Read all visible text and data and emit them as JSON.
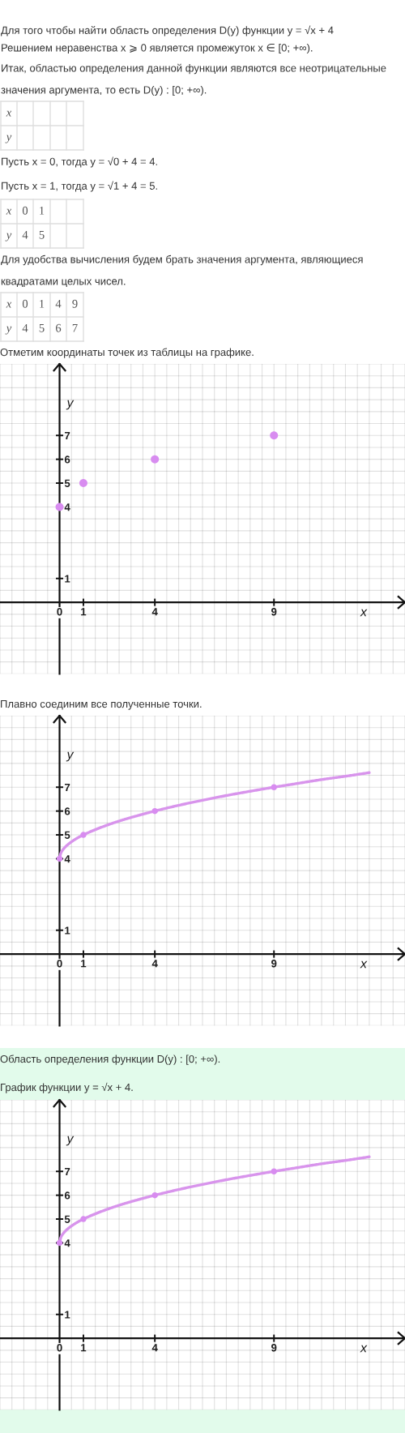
{
  "chart_data": [
    {
      "type": "scatter",
      "title": "Отметим координаты точек из таблицы на графике.",
      "annotations": [
        "Для того чтобы найти область определения D(y) функции y = √x + 4",
        "Решением неравенства x ⩾ 0 является промежуток x ∈ [0; +∞).",
        "Итак, областью определения данной функции являются все неотрицательные",
        "значения аргумента, то есть D(y) : [0; +∞).",
        "Пусть x = 0, тогда y = √0 + 4 = 4.",
        "Пусть x = 1, тогда y = √1 + 4 = 5.",
        "0",
        "1",
        "4",
        "5",
        "Для удобства вычисления будем брать значения аргумента, являющиеся",
        "квадратами целых чисел.",
        "0",
        "1",
        "4",
        "9",
        "4",
        "5",
        "6",
        "7"
      ],
      "xlabel": "x",
      "ylabel": "y",
      "x": [
        0,
        1,
        4,
        9
      ],
      "series": [
        {
          "color": "#d88cf0",
          "marker": "circle",
          "values": [
            4,
            5,
            6,
            7
          ]
        }
      ],
      "xlim": [
        -2.5,
        14.5
      ],
      "ylim": [
        -3,
        10
      ],
      "xticks": [
        {
          "value": -2.5,
          "label": null
        },
        {
          "value": -2,
          "label": null
        },
        {
          "value": -1.5,
          "label": null
        },
        {
          "value": -1,
          "label": null
        },
        {
          "value": -0.5,
          "label": null
        },
        0,
        {
          "value": 0.5,
          "label": null
        },
        1,
        {
          "value": 1.5,
          "label": null
        },
        {
          "value": 2,
          "label": null
        },
        {
          "value": 2.5,
          "label": null
        },
        {
          "value": 3,
          "label": null
        },
        {
          "value": 3.5,
          "label": null
        },
        4,
        {
          "value": 4.5,
          "label": null
        },
        {
          "value": 5,
          "label": null
        },
        {
          "value": 5.5,
          "label": null
        },
        {
          "value": 6,
          "label": null
        },
        {
          "value": 6.5,
          "label": null
        },
        {
          "value": 7,
          "label": null
        },
        {
          "value": 7.5,
          "label": null
        },
        {
          "value": 8,
          "label": null
        },
        {
          "value": 8.5,
          "label": null
        },
        9,
        {
          "value": 9.5,
          "label": null
        },
        {
          "value": 10,
          "label": null
        },
        {
          "value": 10.5,
          "label": null
        },
        {
          "value": 11,
          "label": null
        },
        {
          "value": 11.5,
          "label": null
        },
        {
          "value": 12,
          "label": null
        },
        {
          "value": 12.5,
          "label": null
        },
        {
          "value": 13,
          "label": null
        },
        {
          "value": 13.5,
          "label": null
        },
        {
          "value": 14,
          "label": null
        },
        {
          "value": 14.5,
          "label": null
        }
      ],
      "yticks": [
        {
          "value": -3,
          "label": null
        },
        {
          "value": -2.5,
          "label": null
        },
        {
          "value": -2,
          "label": null
        },
        {
          "value": -1.5,
          "label": null
        },
        {
          "value": -1,
          "label": null
        },
        {
          "value": -0.5,
          "label": null
        },
        {
          "value": 0,
          "label": null
        },
        {
          "value": 0.5,
          "label": null
        },
        1,
        {
          "value": 1.5,
          "label": null
        },
        {
          "value": 2,
          "label": null
        },
        {
          "value": 2.5,
          "label": null
        },
        {
          "value": 3,
          "label": null
        },
        {
          "value": 3.5,
          "label": null
        },
        4,
        {
          "value": 4.5,
          "label": null
        },
        5,
        {
          "value": 5.5,
          "label": null
        },
        6,
        {
          "value": 6.5,
          "label": null
        },
        7,
        {
          "value": 7.5,
          "label": null
        },
        {
          "value": 8,
          "label": null
        },
        {
          "value": 8.5,
          "label": null
        },
        {
          "value": 9,
          "label": null
        },
        {
          "value": 9.5,
          "label": null
        },
        {
          "value": 10,
          "label": null
        }
      ],
      "grid": true
    },
    {
      "type": "line",
      "title": "Плавно соединим все полученные точки.",
      "xlabel": "x",
      "ylabel": "y",
      "x": [
        0,
        1,
        4,
        9
      ],
      "series": [
        {
          "color": "#d894ec",
          "x": [
            0,
            0.05,
            0.15,
            0.3,
            0.5,
            0.75,
            1,
            1.5,
            2,
            2.5,
            3,
            4,
            5,
            6,
            7,
            8,
            9,
            10,
            11,
            12,
            13
          ],
          "values": [
            4,
            4.22,
            4.39,
            4.55,
            4.71,
            4.87,
            5,
            5.22,
            5.41,
            5.58,
            5.73,
            6,
            6.24,
            6.45,
            6.65,
            6.83,
            7,
            7.16,
            7.32,
            7.46,
            7.61
          ]
        },
        {
          "type": "scatter",
          "color": "#d88cf0",
          "marker": "circle",
          "values": [
            4,
            5,
            6,
            7
          ]
        }
      ],
      "xlim": [
        -2.5,
        14.5
      ],
      "ylim": [
        -3,
        10
      ],
      "xticks": [
        {
          "value": -2.5,
          "label": null
        },
        {
          "value": -2,
          "label": null
        },
        {
          "value": -1.5,
          "label": null
        },
        {
          "value": -1,
          "label": null
        },
        {
          "value": -0.5,
          "label": null
        },
        0,
        {
          "value": 0.5,
          "label": null
        },
        1,
        {
          "value": 1.5,
          "label": null
        },
        {
          "value": 2,
          "label": null
        },
        {
          "value": 2.5,
          "label": null
        },
        {
          "value": 3,
          "label": null
        },
        {
          "value": 3.5,
          "label": null
        },
        4,
        {
          "value": 4.5,
          "label": null
        },
        {
          "value": 5,
          "label": null
        },
        {
          "value": 5.5,
          "label": null
        },
        {
          "value": 6,
          "label": null
        },
        {
          "value": 6.5,
          "label": null
        },
        {
          "value": 7,
          "label": null
        },
        {
          "value": 7.5,
          "label": null
        },
        {
          "value": 8,
          "label": null
        },
        {
          "value": 8.5,
          "label": null
        },
        9,
        {
          "value": 9.5,
          "label": null
        },
        {
          "value": 10,
          "label": null
        },
        {
          "value": 10.5,
          "label": null
        },
        {
          "value": 11,
          "label": null
        },
        {
          "value": 11.5,
          "label": null
        },
        {
          "value": 12,
          "label": null
        },
        {
          "value": 12.5,
          "label": null
        },
        {
          "value": 13,
          "label": null
        },
        {
          "value": 13.5,
          "label": null
        },
        {
          "value": 14,
          "label": null
        },
        {
          "value": 14.5,
          "label": null
        }
      ],
      "yticks": [
        {
          "value": -3,
          "label": null
        },
        {
          "value": -2.5,
          "label": null
        },
        {
          "value": -2,
          "label": null
        },
        {
          "value": -1.5,
          "label": null
        },
        {
          "value": -1,
          "label": null
        },
        {
          "value": -0.5,
          "label": null
        },
        {
          "value": 0,
          "label": null
        },
        {
          "value": 0.5,
          "label": null
        },
        1,
        {
          "value": 1.5,
          "label": null
        },
        {
          "value": 2,
          "label": null
        },
        {
          "value": 2.5,
          "label": null
        },
        {
          "value": 3,
          "label": null
        },
        {
          "value": 3.5,
          "label": null
        },
        4,
        {
          "value": 4.5,
          "label": null
        },
        5,
        {
          "value": 5.5,
          "label": null
        },
        6,
        {
          "value": 6.5,
          "label": null
        },
        7,
        {
          "value": 7.5,
          "label": null
        },
        {
          "value": 8,
          "label": null
        },
        {
          "value": 8.5,
          "label": null
        },
        {
          "value": 9,
          "label": null
        },
        {
          "value": 9.5,
          "label": null
        },
        {
          "value": 10,
          "label": null
        }
      ],
      "grid": true
    },
    {
      "type": "line",
      "title": "Область определения функции D(y) : [0; +∞).",
      "subtitle": "График функции y = √x + 4.",
      "xlabel": "x",
      "ylabel": "y",
      "x": [
        0,
        1,
        4,
        9
      ],
      "series": [
        {
          "color": "#d894ec",
          "x": [
            0,
            0.05,
            0.15,
            0.3,
            0.5,
            0.75,
            1,
            1.5,
            2,
            2.5,
            3,
            4,
            5,
            6,
            7,
            8,
            9,
            10,
            11,
            12,
            13
          ],
          "values": [
            4,
            4.22,
            4.39,
            4.55,
            4.71,
            4.87,
            5,
            5.22,
            5.41,
            5.58,
            5.73,
            6,
            6.24,
            6.45,
            6.65,
            6.83,
            7,
            7.16,
            7.32,
            7.46,
            7.61
          ]
        },
        {
          "type": "scatter",
          "color": "#d88cf0",
          "marker": "circle",
          "values": [
            4,
            5,
            6,
            7
          ]
        }
      ],
      "xlim": [
        -2.5,
        14.5
      ],
      "ylim": [
        -3,
        10
      ],
      "xticks": [
        {
          "value": -2.5,
          "label": null
        },
        {
          "value": -2,
          "label": null
        },
        {
          "value": -1.5,
          "label": null
        },
        {
          "value": -1,
          "label": null
        },
        {
          "value": -0.5,
          "label": null
        },
        0,
        {
          "value": 0.5,
          "label": null
        },
        1,
        {
          "value": 1.5,
          "label": null
        },
        {
          "value": 2,
          "label": null
        },
        {
          "value": 2.5,
          "label": null
        },
        {
          "value": 3,
          "label": null
        },
        {
          "value": 3.5,
          "label": null
        },
        4,
        {
          "value": 4.5,
          "label": null
        },
        {
          "value": 5,
          "label": null
        },
        {
          "value": 5.5,
          "label": null
        },
        {
          "value": 6,
          "label": null
        },
        {
          "value": 6.5,
          "label": null
        },
        {
          "value": 7,
          "label": null
        },
        {
          "value": 7.5,
          "label": null
        },
        {
          "value": 8,
          "label": null
        },
        {
          "value": 8.5,
          "label": null
        },
        9,
        {
          "value": 9.5,
          "label": null
        },
        {
          "value": 10,
          "label": null
        },
        {
          "value": 10.5,
          "label": null
        },
        {
          "value": 11,
          "label": null
        },
        {
          "value": 11.5,
          "label": null
        },
        {
          "value": 12,
          "label": null
        },
        {
          "value": 12.5,
          "label": null
        },
        {
          "value": 13,
          "label": null
        },
        {
          "value": 13.5,
          "label": null
        },
        {
          "value": 14,
          "label": null
        },
        {
          "value": 14.5,
          "label": null
        }
      ],
      "yticks": [
        {
          "value": -3,
          "label": null
        },
        {
          "value": -2.5,
          "label": null
        },
        {
          "value": -2,
          "label": null
        },
        {
          "value": -1.5,
          "label": null
        },
        {
          "value": -1,
          "label": null
        },
        {
          "value": -0.5,
          "label": null
        },
        {
          "value": 0,
          "label": null
        },
        {
          "value": 0.5,
          "label": null
        },
        1,
        {
          "value": 1.5,
          "label": null
        },
        {
          "value": 2,
          "label": null
        },
        {
          "value": 2.5,
          "label": null
        },
        {
          "value": 3,
          "label": null
        },
        {
          "value": 3.5,
          "label": null
        },
        4,
        {
          "value": 4.5,
          "label": null
        },
        5,
        {
          "value": 5.5,
          "label": null
        },
        6,
        {
          "value": 6.5,
          "label": null
        },
        7,
        {
          "value": 7.5,
          "label": null
        },
        {
          "value": 8,
          "label": null
        },
        {
          "value": 8.5,
          "label": null
        },
        {
          "value": 9,
          "label": null
        },
        {
          "value": 9.5,
          "label": null
        },
        {
          "value": 10,
          "label": null
        }
      ],
      "grid": true
    }
  ]
}
